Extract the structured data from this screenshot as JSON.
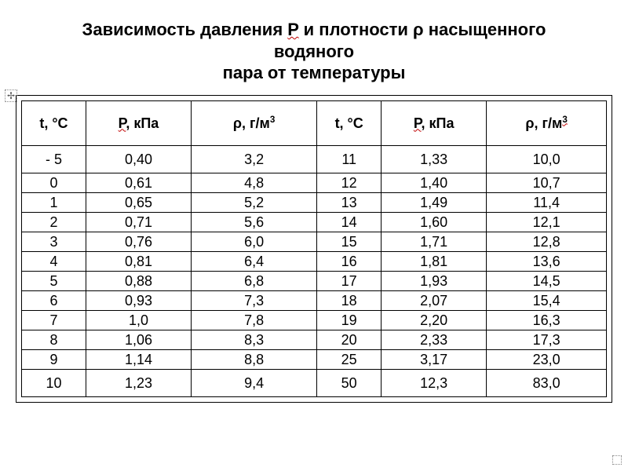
{
  "title_line1": "Зависимость давления ",
  "title_P": "P",
  "title_mid": " и плотности ρ насыщенного водяного",
  "title_line2": "пара от температуры",
  "marker": "✢",
  "table": {
    "columns": [
      "t, °C",
      "P, кПа",
      "ρ, г/м",
      "t, °C",
      "P, кПа",
      "ρ, г/м"
    ],
    "sup": "3",
    "col_widths_pct": [
      11,
      18,
      21.5,
      11,
      18,
      20.5
    ],
    "header_fontsize": 18,
    "cell_fontsize": 18,
    "border_color": "#000000",
    "rows": [
      [
        "- 5",
        "0,40",
        "3,2",
        "11",
        "1,33",
        "10,0"
      ],
      [
        "0",
        "0,61",
        "4,8",
        "12",
        "1,40",
        "10,7"
      ],
      [
        "1",
        "0,65",
        "5,2",
        "13",
        "1,49",
        "11,4"
      ],
      [
        "2",
        "0,71",
        "5,6",
        "14",
        "1,60",
        "12,1"
      ],
      [
        "3",
        "0,76",
        "6,0",
        "15",
        "1,71",
        "12,8"
      ],
      [
        "4",
        "0,81",
        "6,4",
        "16",
        "1,81",
        "13,6"
      ],
      [
        "5",
        "0,88",
        "6,8",
        "17",
        "1,93",
        "14,5"
      ],
      [
        "6",
        "0,93",
        "7,3",
        "18",
        "2,07",
        "15,4"
      ],
      [
        "7",
        "1,0",
        "7,8",
        "19",
        "2,20",
        "16,3"
      ],
      [
        "8",
        "1,06",
        "8,3",
        "20",
        "2,33",
        "17,3"
      ],
      [
        "9",
        "1,14",
        "8,8",
        "25",
        "3,17",
        "23,0"
      ],
      [
        "10",
        "1,23",
        "9,4",
        "50",
        "12,3",
        "83,0"
      ]
    ]
  }
}
